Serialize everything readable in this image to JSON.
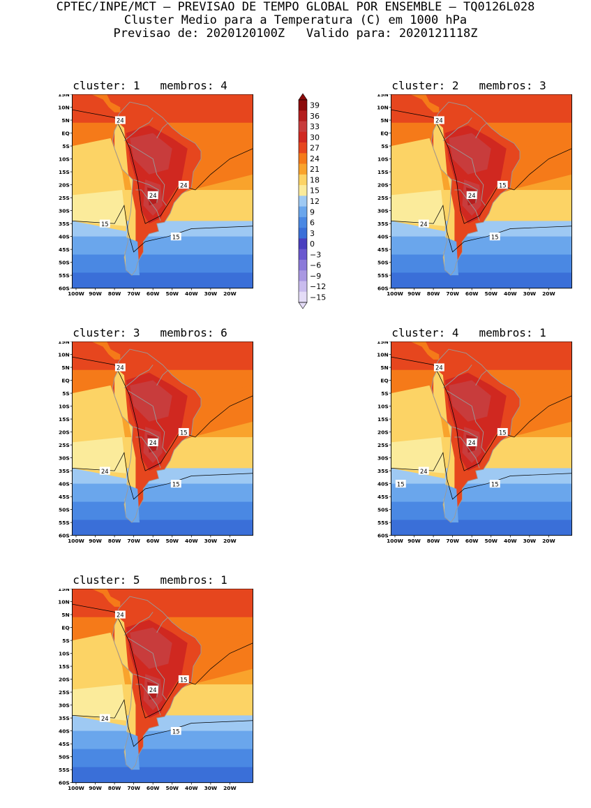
{
  "header": {
    "line1": "CPTEC/INPE/MCT — PREVISAO DE TEMPO GLOBAL POR ENSEMBLE — TQ0126L028",
    "line2": "Cluster Medio para a Temperatura (C) em 1000 hPa",
    "line3": "Previsao de: 2020120100Z   Valido para: 2020121118Z"
  },
  "axis": {
    "lat_labels": [
      "15N",
      "10N",
      "5N",
      "EQ",
      "5S",
      "10S",
      "15S",
      "20S",
      "25S",
      "30S",
      "35S",
      "40S",
      "45S",
      "50S",
      "55S",
      "60S"
    ],
    "lon_labels": [
      "100W",
      "90W",
      "80W",
      "70W",
      "60W",
      "50W",
      "40W",
      "30W",
      "20W"
    ]
  },
  "colorbar": {
    "levels": [
      "39",
      "36",
      "33",
      "30",
      "27",
      "24",
      "21",
      "18",
      "15",
      "12",
      "9",
      "6",
      "3",
      "0",
      "−3",
      "−6",
      "−9",
      "−12",
      "−15"
    ],
    "colors": [
      "#8c0a0a",
      "#b41e1e",
      "#c83c3c",
      "#d02820",
      "#e6461e",
      "#f57a19",
      "#f9a32c",
      "#fcd365",
      "#fbeb9b",
      "#9ec9f3",
      "#6aa6ec",
      "#4a88e3",
      "#3a6fd8",
      "#4a3fbf",
      "#6a58cf",
      "#8b7ad9",
      "#a998e2",
      "#c9bcee",
      "#e4dcf7"
    ]
  },
  "panels": [
    {
      "title": "cluster: 1   membros: 4",
      "contour_labels": [
        "24",
        "24",
        "24",
        "15",
        "15"
      ]
    },
    {
      "title": "cluster: 2   membros: 3",
      "contour_labels": [
        "24",
        "24",
        "15",
        "24",
        "15"
      ]
    },
    {
      "title": "cluster: 3   membros: 6",
      "contour_labels": [
        "24",
        "24",
        "15",
        "24",
        "15"
      ]
    },
    {
      "title": "cluster: 4   membros: 1",
      "contour_labels": [
        "24",
        "24",
        "15",
        "24",
        "15",
        "15"
      ]
    },
    {
      "title": "cluster: 5   membros: 1",
      "contour_labels": [
        "24",
        "24",
        "15",
        "24",
        "15"
      ]
    }
  ]
}
